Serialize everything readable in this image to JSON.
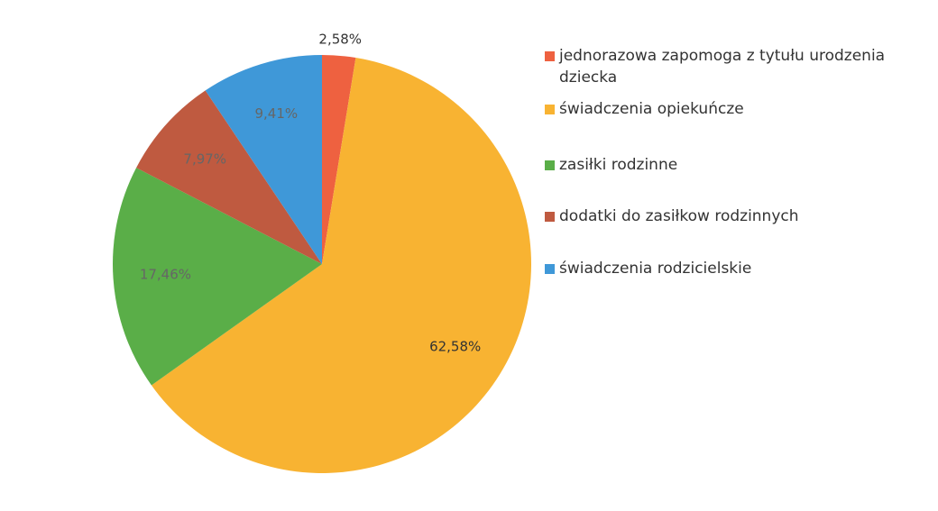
{
  "chart_data": {
    "type": "pie",
    "categories": [
      "jednorazowa zapomoga z tytułu urodzenia dziecka",
      "świadczenia opiekuńcze",
      "zasiłki rodzinne",
      "dodatki do zasiłkow rodzinnych",
      "świadczenia rodzicielskie"
    ],
    "values": [
      2.58,
      62.58,
      17.46,
      7.97,
      9.41
    ],
    "value_labels": [
      "2,58%",
      "62,58%",
      "17,46%",
      "7,97%",
      "9,41%"
    ],
    "colors": [
      "#ee6140",
      "#f8b332",
      "#5aae48",
      "#bf5a40",
      "#3f98d8"
    ],
    "legend": "right"
  }
}
